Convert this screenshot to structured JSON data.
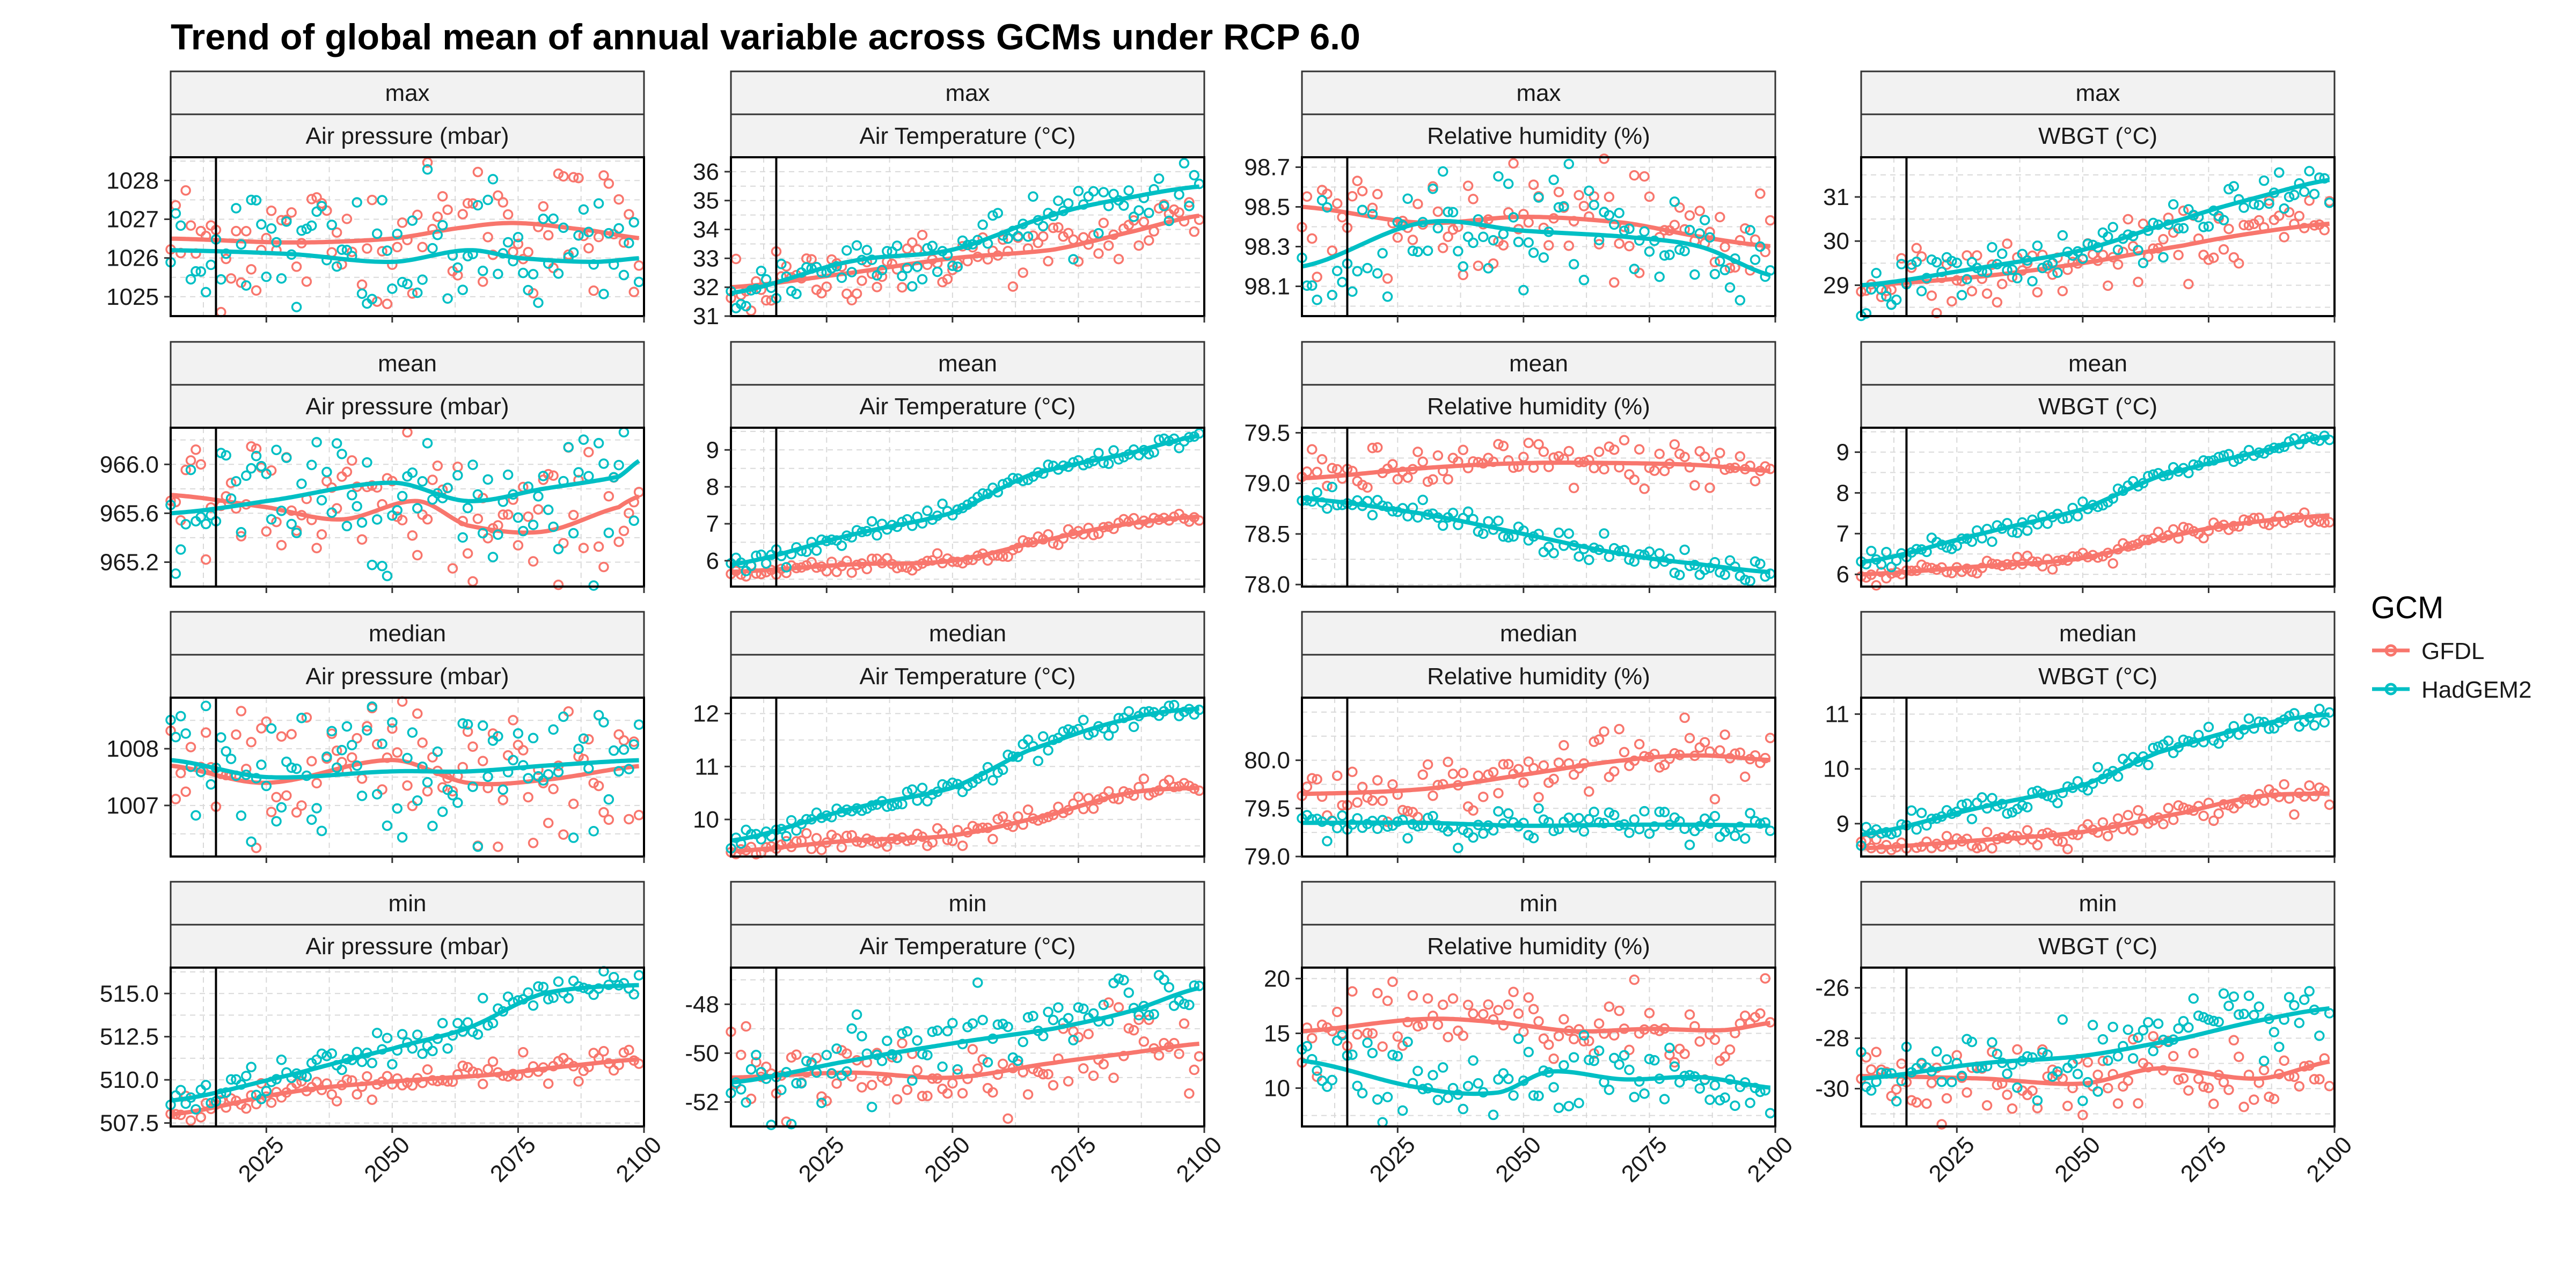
{
  "title": "Trend of global mean of annual variable across GCMs under RCP 6.0",
  "legend": {
    "title": "GCM",
    "items": [
      {
        "label": "GFDL",
        "color": "#F8766D"
      },
      {
        "label": "HadGEM2",
        "color": "#00BFC4"
      }
    ]
  },
  "chart_data": {
    "type": "scatter",
    "description_of_marks": "open-circle points per year with smoothed trend line per series",
    "x": {
      "range": [
        2006,
        2100
      ],
      "ticks": [
        2025,
        2050,
        2075,
        2100
      ]
    },
    "vline_x": 2015,
    "grid": true,
    "legend_position": "right",
    "series_names": [
      "GFDL",
      "HadGEM2"
    ],
    "panels": [
      {
        "stat": "max",
        "variable": "Air pressure (mbar)",
        "ylim": [
          1024.5,
          1028.6
        ],
        "yticks": [
          "1025",
          "1026",
          "1027",
          "1028"
        ],
        "yvals": [
          1025,
          1026,
          1027,
          1028
        ],
        "series": [
          {
            "name": "GFDL",
            "trend_x": [
              2006,
              2030,
              2050,
              2065,
              2075,
              2090,
              2100
            ],
            "trend_y": [
              1026.5,
              1026.4,
              1026.5,
              1026.8,
              1026.9,
              1026.7,
              1026.5
            ],
            "scatter_sd": 0.9
          },
          {
            "name": "HadGEM2",
            "trend_x": [
              2006,
              2030,
              2050,
              2065,
              2075,
              2090,
              2100
            ],
            "trend_y": [
              1026.2,
              1026.1,
              1025.9,
              1026.2,
              1026.0,
              1025.9,
              1026.0
            ],
            "scatter_sd": 0.9
          }
        ]
      },
      {
        "stat": "max",
        "variable": "Air Temperature (°C)",
        "ylim": [
          31,
          36.5
        ],
        "yticks": [
          "31",
          "32",
          "33",
          "34",
          "35",
          "36"
        ],
        "yvals": [
          31,
          32,
          33,
          34,
          35,
          36
        ],
        "series": [
          {
            "name": "GFDL",
            "trend_x": [
              2006,
              2030,
              2050,
              2070,
              2085,
              2100
            ],
            "trend_y": [
              32.0,
              32.5,
              33.0,
              33.3,
              33.9,
              34.5
            ],
            "scatter_sd": 0.5
          },
          {
            "name": "HadGEM2",
            "trend_x": [
              2006,
              2030,
              2050,
              2070,
              2085,
              2100
            ],
            "trend_y": [
              31.8,
              32.9,
              33.3,
              34.5,
              35.1,
              35.5
            ],
            "scatter_sd": 0.5
          }
        ]
      },
      {
        "stat": "max",
        "variable": "Relative humidity (%)",
        "ylim": [
          97.95,
          98.75
        ],
        "yticks": [
          "98.1",
          "98.3",
          "98.5",
          "98.7"
        ],
        "yvals": [
          98.1,
          98.3,
          98.5,
          98.7
        ],
        "series": [
          {
            "name": "GFDL",
            "trend_x": [
              2006,
              2030,
              2050,
              2070,
              2085,
              2100
            ],
            "trend_y": [
              98.5,
              98.42,
              98.45,
              98.42,
              98.35,
              98.3
            ],
            "scatter_sd": 0.15
          },
          {
            "name": "HadGEM2",
            "trend_x": [
              2006,
              2030,
              2050,
              2070,
              2085,
              2100
            ],
            "trend_y": [
              98.2,
              98.42,
              98.38,
              98.35,
              98.3,
              98.15
            ],
            "scatter_sd": 0.15
          }
        ]
      },
      {
        "stat": "max",
        "variable": "WBGT (°C)",
        "ylim": [
          28.3,
          31.9
        ],
        "yticks": [
          "29",
          "30",
          "31"
        ],
        "yvals": [
          29,
          30,
          31
        ],
        "series": [
          {
            "name": "GFDL",
            "trend_x": [
              2006,
              2030,
              2050,
              2070,
              2085,
              2100
            ],
            "trend_y": [
              29.0,
              29.2,
              29.5,
              29.9,
              30.2,
              30.4
            ],
            "scatter_sd": 0.35
          },
          {
            "name": "HadGEM2",
            "trend_x": [
              2006,
              2030,
              2050,
              2070,
              2085,
              2100
            ],
            "trend_y": [
              29.0,
              29.4,
              29.8,
              30.5,
              31.0,
              31.4
            ],
            "scatter_sd": 0.35
          }
        ]
      },
      {
        "stat": "mean",
        "variable": "Air pressure (mbar)",
        "ylim": [
          965.0,
          966.3
        ],
        "yticks": [
          "965.2",
          "965.6",
          "966.0"
        ],
        "yvals": [
          965.2,
          965.6,
          966.0
        ],
        "series": [
          {
            "name": "GFDL",
            "trend_x": [
              2006,
              2025,
              2040,
              2055,
              2065,
              2080,
              2095,
              2100
            ],
            "trend_y": [
              965.75,
              965.65,
              965.55,
              965.7,
              965.5,
              965.45,
              965.65,
              965.75
            ],
            "scatter_sd": 0.3
          },
          {
            "name": "HadGEM2",
            "trend_x": [
              2006,
              2025,
              2050,
              2065,
              2080,
              2095,
              2100
            ],
            "trend_y": [
              965.6,
              965.7,
              965.85,
              965.7,
              965.8,
              965.9,
              966.05
            ],
            "scatter_sd": 0.3
          }
        ]
      },
      {
        "stat": "mean",
        "variable": "Air Temperature (°C)",
        "ylim": [
          5.3,
          9.6
        ],
        "yticks": [
          "6",
          "7",
          "8",
          "9"
        ],
        "yvals": [
          6,
          7,
          8,
          9
        ],
        "series": [
          {
            "name": "GFDL",
            "trend_x": [
              2006,
              2030,
              2050,
              2070,
              2085,
              2100
            ],
            "trend_y": [
              5.7,
              5.9,
              6.0,
              6.6,
              7.0,
              7.2
            ],
            "scatter_sd": 0.1
          },
          {
            "name": "HadGEM2",
            "trend_x": [
              2006,
              2030,
              2050,
              2065,
              2085,
              2100
            ],
            "trend_y": [
              5.9,
              6.7,
              7.3,
              8.3,
              8.9,
              9.4
            ],
            "scatter_sd": 0.1
          }
        ]
      },
      {
        "stat": "mean",
        "variable": "Relative humidity (%)",
        "ylim": [
          77.98,
          79.55
        ],
        "yticks": [
          "78.0",
          "78.5",
          "79.0",
          "79.5"
        ],
        "yvals": [
          78.0,
          78.5,
          79.0,
          79.5
        ],
        "series": [
          {
            "name": "GFDL",
            "trend_x": [
              2006,
              2030,
              2050,
              2070,
              2085,
              2100
            ],
            "trend_y": [
              79.05,
              79.15,
              79.2,
              79.2,
              79.18,
              79.12
            ],
            "scatter_sd": 0.12
          },
          {
            "name": "HadGEM2",
            "trend_x": [
              2006,
              2030,
              2050,
              2070,
              2085,
              2100
            ],
            "trend_y": [
              78.85,
              78.7,
              78.5,
              78.3,
              78.2,
              78.12
            ],
            "scatter_sd": 0.08
          }
        ]
      },
      {
        "stat": "mean",
        "variable": "WBGT (°C)",
        "ylim": [
          5.7,
          9.6
        ],
        "yticks": [
          "6",
          "7",
          "8",
          "9"
        ],
        "yvals": [
          6,
          7,
          8,
          9
        ],
        "series": [
          {
            "name": "GFDL",
            "trend_x": [
              2006,
              2030,
              2050,
              2070,
              2085,
              2100
            ],
            "trend_y": [
              6.0,
              6.2,
              6.4,
              7.0,
              7.3,
              7.45
            ],
            "scatter_sd": 0.1
          },
          {
            "name": "HadGEM2",
            "trend_x": [
              2006,
              2030,
              2050,
              2065,
              2085,
              2100
            ],
            "trend_y": [
              6.3,
              7.0,
              7.6,
              8.4,
              9.0,
              9.4
            ],
            "scatter_sd": 0.1
          }
        ]
      },
      {
        "stat": "median",
        "variable": "Air pressure (mbar)",
        "ylim": [
          1006.1,
          1008.9
        ],
        "yticks": [
          "1007",
          "1008"
        ],
        "yvals": [
          1007,
          1008
        ],
        "series": [
          {
            "name": "GFDL",
            "trend_x": [
              2006,
              2025,
              2050,
              2065,
              2080,
              2100
            ],
            "trend_y": [
              1007.7,
              1007.4,
              1007.8,
              1007.4,
              1007.45,
              1007.7
            ],
            "scatter_sd": 0.6
          },
          {
            "name": "HadGEM2",
            "trend_x": [
              2006,
              2025,
              2050,
              2065,
              2080,
              2100
            ],
            "trend_y": [
              1007.8,
              1007.5,
              1007.6,
              1007.6,
              1007.7,
              1007.8
            ],
            "scatter_sd": 0.6
          }
        ]
      },
      {
        "stat": "median",
        "variable": "Air Temperature (°C)",
        "ylim": [
          9.3,
          12.3
        ],
        "yticks": [
          "10",
          "11",
          "12"
        ],
        "yvals": [
          10,
          11,
          12
        ],
        "series": [
          {
            "name": "GFDL",
            "trend_x": [
              2006,
              2030,
              2050,
              2070,
              2085,
              2100
            ],
            "trend_y": [
              9.4,
              9.6,
              9.7,
              10.1,
              10.5,
              10.6
            ],
            "scatter_sd": 0.1
          },
          {
            "name": "HadGEM2",
            "trend_x": [
              2006,
              2030,
              2050,
              2065,
              2085,
              2100
            ],
            "trend_y": [
              9.6,
              10.2,
              10.6,
              11.3,
              11.9,
              12.1
            ],
            "scatter_sd": 0.1
          }
        ]
      },
      {
        "stat": "median",
        "variable": "Relative humidity (%)",
        "ylim": [
          79.0,
          80.65
        ],
        "yticks": [
          "79.0",
          "79.5",
          "80.0"
        ],
        "yvals": [
          79.0,
          79.5,
          80.0
        ],
        "series": [
          {
            "name": "GFDL",
            "trend_x": [
              2006,
              2030,
              2050,
              2070,
              2085,
              2100
            ],
            "trend_y": [
              79.65,
              79.7,
              79.85,
              80.0,
              80.05,
              80.0
            ],
            "scatter_sd": 0.15
          },
          {
            "name": "HadGEM2",
            "trend_x": [
              2006,
              2030,
              2050,
              2070,
              2085,
              2100
            ],
            "trend_y": [
              79.35,
              79.35,
              79.32,
              79.33,
              79.33,
              79.32
            ],
            "scatter_sd": 0.08
          }
        ]
      },
      {
        "stat": "median",
        "variable": "WBGT (°C)",
        "ylim": [
          8.4,
          11.3
        ],
        "yticks": [
          "9",
          "10",
          "11"
        ],
        "yvals": [
          9,
          10,
          11
        ],
        "series": [
          {
            "name": "GFDL",
            "trend_x": [
              2006,
              2030,
              2050,
              2070,
              2085,
              2100
            ],
            "trend_y": [
              8.55,
              8.7,
              8.85,
              9.2,
              9.5,
              9.55
            ],
            "scatter_sd": 0.1
          },
          {
            "name": "HadGEM2",
            "trend_x": [
              2006,
              2030,
              2050,
              2065,
              2085,
              2100
            ],
            "trend_y": [
              8.8,
              9.3,
              9.7,
              10.3,
              10.8,
              11.0
            ],
            "scatter_sd": 0.1
          }
        ]
      },
      {
        "stat": "min",
        "variable": "Air pressure (mbar)",
        "ylim": [
          507.3,
          516.5
        ],
        "yticks": [
          "507.5",
          "510.0",
          "512.5",
          "515.0"
        ],
        "yvals": [
          507.5,
          510.0,
          512.5,
          515.0
        ],
        "series": [
          {
            "name": "GFDL",
            "trend_x": [
              2006,
              2030,
              2050,
              2070,
              2085,
              2100
            ],
            "trend_y": [
              508.0,
              509.3,
              509.9,
              510.3,
              510.8,
              511.2
            ],
            "scatter_sd": 0.4
          },
          {
            "name": "HadGEM2",
            "trend_x": [
              2006,
              2030,
              2050,
              2065,
              2080,
              2100
            ],
            "trend_y": [
              508.8,
              510.3,
              511.8,
              513.0,
              515.0,
              515.5
            ],
            "scatter_sd": 0.5
          }
        ]
      },
      {
        "stat": "min",
        "variable": "Air Temperature (°C)",
        "ylim": [
          -53,
          -46.5
        ],
        "yticks": [
          "-52",
          "-50",
          "-48"
        ],
        "yvals": [
          -52,
          -50,
          -48
        ],
        "series": [
          {
            "name": "GFDL",
            "trend_x": [
              2006,
              2030,
              2050,
              2070,
              2085,
              2100
            ],
            "trend_y": [
              -51.0,
              -50.8,
              -51.0,
              -50.4,
              -50.0,
              -49.6
            ],
            "scatter_sd": 0.8
          },
          {
            "name": "HadGEM2",
            "trend_x": [
              2006,
              2030,
              2050,
              2070,
              2085,
              2100
            ],
            "trend_y": [
              -51.2,
              -50.3,
              -49.6,
              -49.0,
              -48.3,
              -47.3
            ],
            "scatter_sd": 0.8
          }
        ]
      },
      {
        "stat": "min",
        "variable": "Relative humidity (%)",
        "ylim": [
          6.5,
          21
        ],
        "yticks": [
          "10",
          "15",
          "20"
        ],
        "yvals": [
          10,
          15,
          20
        ],
        "series": [
          {
            "name": "GFDL",
            "trend_x": [
              2006,
              2030,
              2045,
              2060,
              2075,
              2090,
              2100
            ],
            "trend_y": [
              15.2,
              16.3,
              16.0,
              15.2,
              15.4,
              15.3,
              16.0
            ],
            "scatter_sd": 2.0
          },
          {
            "name": "HadGEM2",
            "trend_x": [
              2006,
              2030,
              2045,
              2055,
              2070,
              2085,
              2100
            ],
            "trend_y": [
              12.5,
              10.0,
              9.6,
              11.5,
              10.8,
              11.0,
              10.0
            ],
            "scatter_sd": 1.6
          }
        ]
      },
      {
        "stat": "min",
        "variable": "WBGT (°C)",
        "ylim": [
          -31.5,
          -25.2
        ],
        "yticks": [
          "-30",
          "-28",
          "-26"
        ],
        "yvals": [
          -30,
          -28,
          -26
        ],
        "series": [
          {
            "name": "GFDL",
            "trend_x": [
              2006,
              2030,
              2050,
              2065,
              2085,
              2100
            ],
            "trend_y": [
              -29.5,
              -29.6,
              -29.8,
              -29.2,
              -29.6,
              -28.9
            ],
            "scatter_sd": 0.7
          },
          {
            "name": "HadGEM2",
            "trend_x": [
              2006,
              2030,
              2050,
              2070,
              2085,
              2100
            ],
            "trend_y": [
              -29.6,
              -29.0,
              -28.7,
              -28.0,
              -27.3,
              -26.8
            ],
            "scatter_sd": 0.7
          }
        ]
      }
    ]
  }
}
